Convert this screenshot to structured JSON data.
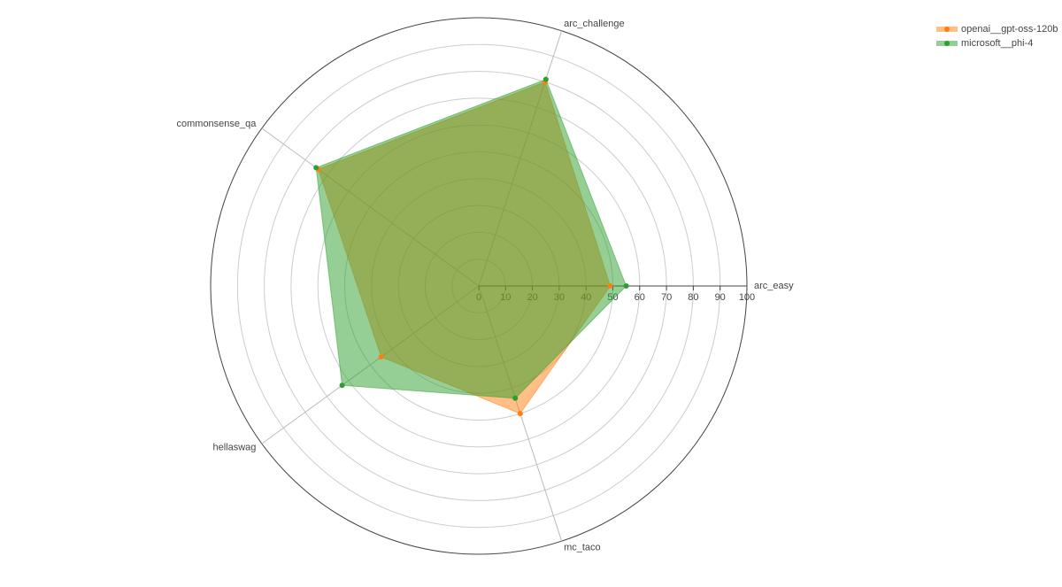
{
  "chart_data": {
    "type": "radar",
    "categories": [
      "arc_easy",
      "arc_challenge",
      "commonsense_qa",
      "hellaswag",
      "mc_taco"
    ],
    "series": [
      {
        "name": "openai__gpt-oss-120b",
        "color": "#ff7f0e",
        "values": [
          49,
          80,
          74,
          45,
          50
        ]
      },
      {
        "name": "microsoft__phi-4",
        "color": "#2ca02c",
        "values": [
          55,
          81,
          75,
          63,
          44
        ]
      }
    ],
    "rlim": [
      0,
      100
    ],
    "rticks": [
      0,
      10,
      20,
      30,
      40,
      50,
      60,
      70,
      80,
      90,
      100
    ],
    "grid": true,
    "legend": "top-right"
  }
}
